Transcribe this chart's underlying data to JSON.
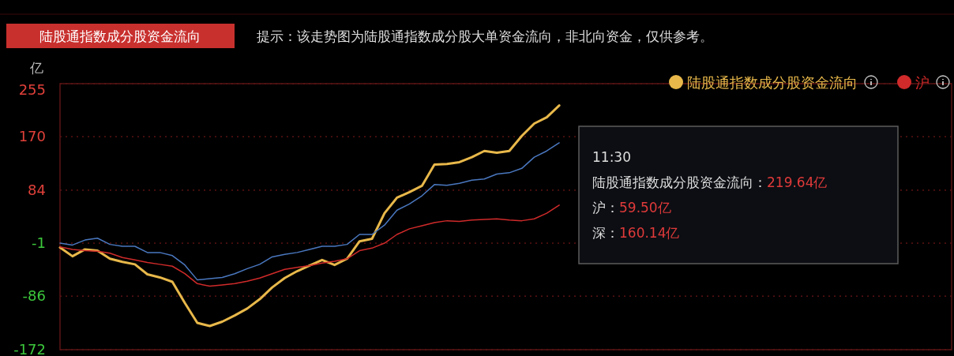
{
  "chart_data": {
    "type": "line",
    "title": "陆股通指数成分股资金流向",
    "subtitle": "提示：该走势图为陆股通指数成分股大单资金流向，非北向资金，仅供参考。",
    "ylabel": "亿",
    "categories": [
      null,
      null,
      null,
      null,
      null,
      null,
      null,
      null,
      null,
      null,
      null,
      null,
      null,
      null,
      null,
      null,
      null,
      null,
      null,
      null,
      null,
      null,
      null,
      null,
      null,
      null,
      null,
      null,
      null,
      null,
      null,
      null,
      null,
      null,
      null,
      null,
      null,
      null,
      null,
      null,
      null,
      null,
      null,
      null,
      null,
      null,
      null,
      null,
      null,
      null,
      null,
      null,
      null,
      null,
      null,
      null,
      null,
      null,
      null,
      null,
      null,
      null,
      null,
      null,
      null,
      null,
      null,
      null,
      null,
      null,
      null,
      null
    ],
    "series": [
      {
        "name": "陆股通指数成分股资金流向",
        "color": "#e8b84a",
        "values": [
          -8,
          -22,
          -11,
          -13,
          -26,
          -31,
          -35,
          -51,
          -56,
          -63,
          -97,
          -129,
          -134,
          -127,
          -117,
          -106,
          -91,
          -72,
          -57,
          -46,
          -37,
          -28,
          -36,
          -26,
          2,
          6,
          47,
          72,
          81,
          91,
          125,
          126,
          129,
          137,
          147,
          144,
          147,
          171,
          191,
          201,
          220,
          null,
          null,
          null,
          null,
          null,
          null,
          null,
          null,
          null,
          null,
          null,
          null,
          null,
          null,
          null,
          null,
          null,
          null,
          null,
          null,
          null,
          null,
          null,
          null,
          null,
          null,
          null,
          null,
          null,
          null,
          null
        ]
      },
      {
        "color": "#4a78c0",
        "values": [
          -1,
          -4,
          4,
          7,
          -3,
          -6,
          -6,
          -16,
          -16,
          -21,
          -36,
          -60,
          -58,
          -56,
          -50,
          -42,
          -35,
          -23,
          -19,
          -16,
          -11,
          -6,
          -6,
          -3,
          13,
          13,
          28,
          52,
          62,
          75,
          93,
          92,
          95,
          100,
          102,
          110,
          112,
          119,
          137,
          147,
          160,
          null,
          null,
          null,
          null,
          null,
          null,
          null,
          null,
          null,
          null,
          null,
          null,
          null,
          null,
          null,
          null,
          null,
          null,
          null,
          null,
          null,
          null,
          null,
          null,
          null,
          null,
          null,
          null,
          null,
          null,
          null
        ]
      },
      {
        "name": "沪",
        "color": "#d02a2a",
        "values": [
          -7,
          -11,
          -13,
          -14,
          -17,
          -24,
          -28,
          -32,
          -35,
          -38,
          -50,
          -66,
          -70,
          -68,
          -66,
          -62,
          -57,
          -50,
          -43,
          -40,
          -37,
          -33,
          -30,
          -26,
          -13,
          -9,
          -1,
          13,
          22,
          27,
          32,
          35,
          34,
          36,
          37,
          38,
          36,
          35,
          38,
          47,
          60,
          null,
          null,
          null,
          null,
          null,
          null,
          null,
          null,
          null,
          null,
          null,
          null,
          null,
          null,
          null,
          null,
          null,
          null,
          null,
          null,
          null,
          null,
          null,
          null,
          null,
          null,
          null,
          null,
          null,
          null,
          null
        ]
      }
    ],
    "ylim": [
      -172,
      255
    ],
    "yticks": [
      255,
      170,
      84,
      -1,
      -86,
      -172
    ],
    "grid": "y",
    "legend": "top right",
    "annotations": [
      "11:30",
      "陆股通指数成分股资金流向：219.64亿",
      "沪：59.50亿",
      "深：160.14亿"
    ]
  }
}
